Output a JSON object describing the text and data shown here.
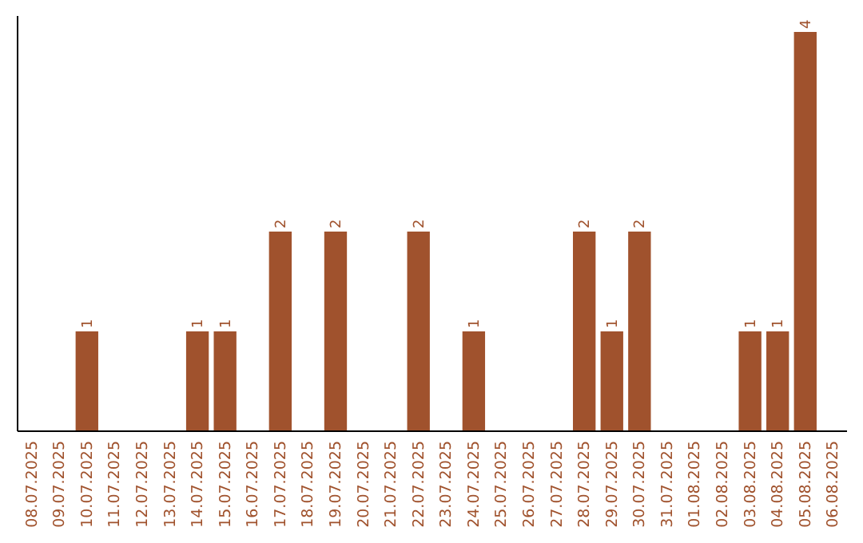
{
  "chart_data": {
    "type": "bar",
    "categories": [
      "08.07.2025",
      "09.07.2025",
      "10.07.2025",
      "11.07.2025",
      "12.07.2025",
      "13.07.2025",
      "14.07.2025",
      "15.07.2025",
      "16.07.2025",
      "17.07.2025",
      "18.07.2025",
      "19.07.2025",
      "20.07.2025",
      "21.07.2025",
      "22.07.2025",
      "23.07.2025",
      "24.07.2025",
      "25.07.2025",
      "26.07.2025",
      "27.07.2025",
      "28.07.2025",
      "29.07.2025",
      "30.07.2025",
      "31.07.2025",
      "01.08.2025",
      "02.08.2025",
      "03.08.2025",
      "04.08.2025",
      "05.08.2025",
      "06.08.2025"
    ],
    "values": [
      0,
      0,
      1,
      0,
      0,
      0,
      1,
      1,
      0,
      2,
      0,
      2,
      0,
      0,
      2,
      0,
      1,
      0,
      0,
      0,
      2,
      1,
      2,
      0,
      0,
      0,
      1,
      1,
      4,
      0
    ],
    "value_labels": [
      null,
      null,
      "1",
      null,
      null,
      null,
      "1",
      "1",
      null,
      "2",
      null,
      "2",
      null,
      null,
      "2",
      null,
      "1",
      null,
      null,
      null,
      "2",
      "1",
      "2",
      null,
      null,
      null,
      "1",
      "1",
      "4",
      null
    ],
    "color": "#a0522d",
    "ylim": [
      0,
      4.16
    ],
    "tick_labels": "x"
  }
}
